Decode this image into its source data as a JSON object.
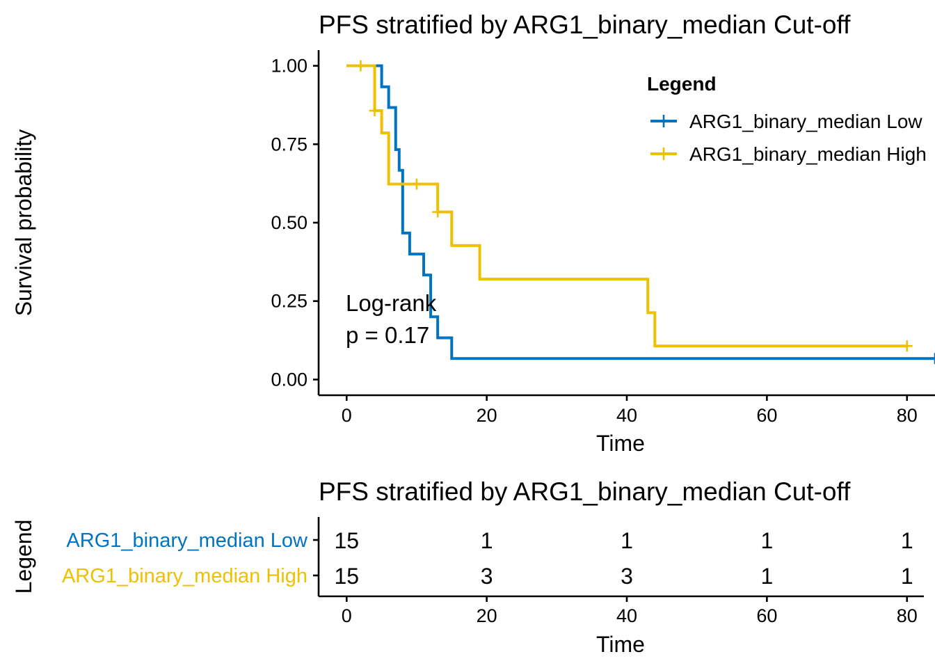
{
  "colors": {
    "low": "#0073C2",
    "high": "#EFC000",
    "axis": "#000000"
  },
  "chart_data": [
    {
      "type": "line",
      "subtype": "kaplan-meier",
      "title": "PFS stratified by ARG1_binary_median Cut-off",
      "xlabel": "Time",
      "ylabel": "Survival probability",
      "xlim": [
        -4,
        84
      ],
      "ylim": [
        -0.05,
        1.05
      ],
      "xticks": [
        "0",
        "20",
        "40",
        "60",
        "80"
      ],
      "yticks": [
        "0.00",
        "0.25",
        "0.50",
        "0.75",
        "1.00"
      ],
      "legend": {
        "title": "Legend",
        "position": "top-right",
        "items": [
          "ARG1_binary_median Low",
          "ARG1_binary_median High"
        ]
      },
      "annotation": {
        "line1": "Log-rank",
        "line2": "p = 0.17"
      },
      "series": [
        {
          "name": "ARG1_binary_median Low",
          "color": "#0073C2",
          "steps": [
            [
              0,
              1.0
            ],
            [
              5,
              0.933
            ],
            [
              6,
              0.867
            ],
            [
              7,
              0.733
            ],
            [
              7.5,
              0.667
            ],
            [
              8,
              0.467
            ],
            [
              9,
              0.4
            ],
            [
              11,
              0.333
            ],
            [
              12,
              0.2
            ],
            [
              13,
              0.133
            ],
            [
              15,
              0.067
            ],
            [
              84,
              0.067
            ]
          ],
          "censor": [
            [
              84,
              0.067
            ]
          ]
        },
        {
          "name": "ARG1_binary_median High",
          "color": "#EFC000",
          "steps": [
            [
              0,
              1.0
            ],
            [
              4,
              0.857
            ],
            [
              5,
              0.786
            ],
            [
              6,
              0.623
            ],
            [
              13,
              0.534
            ],
            [
              15,
              0.427
            ],
            [
              19,
              0.32
            ],
            [
              43,
              0.213
            ],
            [
              44,
              0.107
            ],
            [
              80,
              0.107
            ]
          ],
          "censor": [
            [
              2,
              1.0
            ],
            [
              4,
              0.857
            ],
            [
              10,
              0.623
            ],
            [
              13,
              0.534
            ],
            [
              80,
              0.107
            ]
          ]
        }
      ]
    },
    {
      "type": "table",
      "title": "PFS stratified by ARG1_binary_median Cut-off",
      "xlabel": "Time",
      "ylabel": "Legend",
      "xlim": [
        -4,
        84
      ],
      "xticks": [
        "0",
        "20",
        "40",
        "60",
        "80"
      ],
      "times": [
        0,
        20,
        40,
        60,
        80
      ],
      "rows": [
        {
          "label": "ARG1_binary_median Low",
          "color": "#0073C2",
          "values": [
            "15",
            "1",
            "1",
            "1",
            "1"
          ]
        },
        {
          "label": "ARG1_binary_median High",
          "color": "#EFC000",
          "values": [
            "15",
            "3",
            "3",
            "1",
            "1"
          ]
        }
      ]
    }
  ]
}
